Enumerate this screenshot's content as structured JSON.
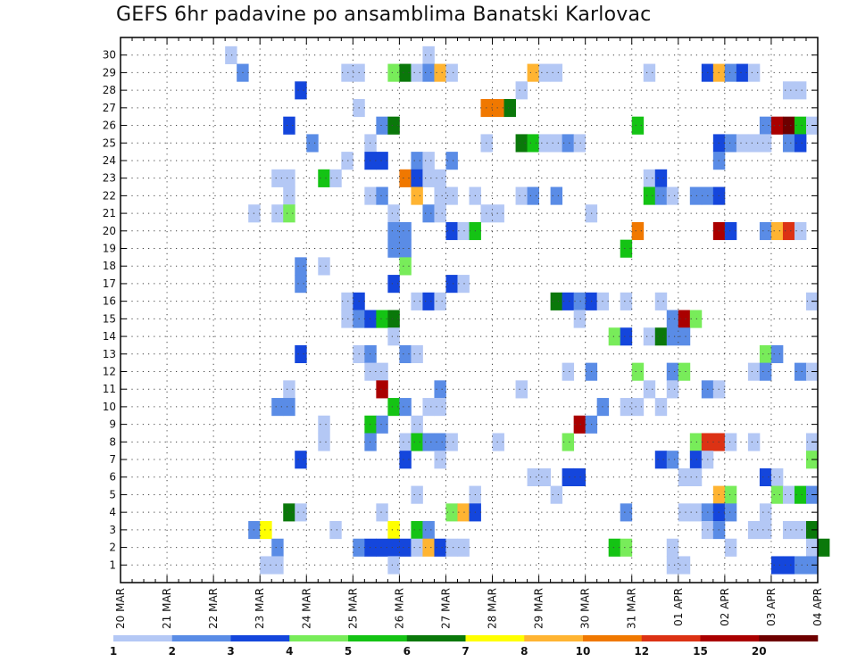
{
  "chart_data": {
    "type": "heatmap",
    "title": "GEFS 6hr padavine po ansamblima Banatski Karlovac",
    "y_ticks": [
      "1",
      "2",
      "3",
      "4",
      "5",
      "6",
      "7",
      "8",
      "9",
      "10",
      "11",
      "12",
      "13",
      "14",
      "15",
      "16",
      "17",
      "18",
      "19",
      "20",
      "21",
      "22",
      "23",
      "24",
      "25",
      "26",
      "27",
      "28",
      "29",
      "30"
    ],
    "x_ticks": [
      "20 MAR",
      "21 MAR",
      "22 MAR",
      "23 MAR",
      "24 MAR",
      "25 MAR",
      "26 MAR",
      "27 MAR",
      "28 MAR",
      "29 MAR",
      "30 MAR",
      "31 MAR",
      "01 APR",
      "02 APR",
      "03 APR",
      "04 APR"
    ],
    "grid": true,
    "colorbar": {
      "labels": [
        "1",
        "2",
        "3",
        "4",
        "5",
        "6",
        "7",
        "8",
        "10",
        "12",
        "15",
        "20"
      ],
      "colors": [
        "#b4c8f5",
        "#5a8ce6",
        "#1446dc",
        "#78ec5a",
        "#14c314",
        "#0a780a",
        "#ffff00",
        "#ffb432",
        "#f07800",
        "#dc3214",
        "#aa0000",
        "#6e0000"
      ]
    },
    "x_steps_per_day": 4,
    "cells": [
      {
        "x": 9,
        "y": 30,
        "c": 0
      },
      {
        "x": 26,
        "y": 30,
        "c": 0
      },
      {
        "x": 10,
        "y": 29,
        "c": 1
      },
      {
        "x": 19,
        "y": 29,
        "c": 0
      },
      {
        "x": 20,
        "y": 29,
        "c": 0
      },
      {
        "x": 23,
        "y": 29,
        "c": 3
      },
      {
        "x": 24,
        "y": 29,
        "c": 5
      },
      {
        "x": 25,
        "y": 29,
        "c": 0
      },
      {
        "x": 26,
        "y": 29,
        "c": 1
      },
      {
        "x": 27,
        "y": 29,
        "c": 7
      },
      {
        "x": 28,
        "y": 29,
        "c": 0
      },
      {
        "x": 35,
        "y": 29,
        "c": 7
      },
      {
        "x": 36,
        "y": 29,
        "c": 0
      },
      {
        "x": 37,
        "y": 29,
        "c": 0
      },
      {
        "x": 45,
        "y": 29,
        "c": 0
      },
      {
        "x": 50,
        "y": 29,
        "c": 2
      },
      {
        "x": 51,
        "y": 29,
        "c": 7
      },
      {
        "x": 52,
        "y": 29,
        "c": 1
      },
      {
        "x": 53,
        "y": 29,
        "c": 2
      },
      {
        "x": 54,
        "y": 29,
        "c": 0
      },
      {
        "x": 15,
        "y": 28,
        "c": 2
      },
      {
        "x": 34,
        "y": 28,
        "c": 0
      },
      {
        "x": 57,
        "y": 28,
        "c": 0
      },
      {
        "x": 58,
        "y": 28,
        "c": 0
      },
      {
        "x": 20,
        "y": 27,
        "c": 0
      },
      {
        "x": 31,
        "y": 27,
        "c": 8
      },
      {
        "x": 32,
        "y": 27,
        "c": 8
      },
      {
        "x": 33,
        "y": 27,
        "c": 5
      },
      {
        "x": 14,
        "y": 26,
        "c": 2
      },
      {
        "x": 22,
        "y": 26,
        "c": 1
      },
      {
        "x": 23,
        "y": 26,
        "c": 5
      },
      {
        "x": 44,
        "y": 26,
        "c": 4
      },
      {
        "x": 55,
        "y": 26,
        "c": 1
      },
      {
        "x": 56,
        "y": 26,
        "c": 10
      },
      {
        "x": 57,
        "y": 26,
        "c": 11
      },
      {
        "x": 58,
        "y": 26,
        "c": 4
      },
      {
        "x": 59,
        "y": 26,
        "c": 0
      },
      {
        "x": 16,
        "y": 25,
        "c": 1
      },
      {
        "x": 21,
        "y": 25,
        "c": 0
      },
      {
        "x": 31,
        "y": 25,
        "c": 0
      },
      {
        "x": 34,
        "y": 25,
        "c": 5
      },
      {
        "x": 35,
        "y": 25,
        "c": 4
      },
      {
        "x": 36,
        "y": 25,
        "c": 0
      },
      {
        "x": 37,
        "y": 25,
        "c": 0
      },
      {
        "x": 38,
        "y": 25,
        "c": 1
      },
      {
        "x": 39,
        "y": 25,
        "c": 0
      },
      {
        "x": 51,
        "y": 25,
        "c": 2
      },
      {
        "x": 52,
        "y": 25,
        "c": 1
      },
      {
        "x": 53,
        "y": 25,
        "c": 0
      },
      {
        "x": 54,
        "y": 25,
        "c": 0
      },
      {
        "x": 55,
        "y": 25,
        "c": 0
      },
      {
        "x": 57,
        "y": 25,
        "c": 1
      },
      {
        "x": 58,
        "y": 25,
        "c": 2
      },
      {
        "x": 19,
        "y": 24,
        "c": 0
      },
      {
        "x": 21,
        "y": 24,
        "c": 2
      },
      {
        "x": 22,
        "y": 24,
        "c": 2
      },
      {
        "x": 25,
        "y": 24,
        "c": 1
      },
      {
        "x": 26,
        "y": 24,
        "c": 0
      },
      {
        "x": 28,
        "y": 24,
        "c": 1
      },
      {
        "x": 51,
        "y": 24,
        "c": 1
      },
      {
        "x": 13,
        "y": 23,
        "c": 0
      },
      {
        "x": 14,
        "y": 23,
        "c": 0
      },
      {
        "x": 17,
        "y": 23,
        "c": 4
      },
      {
        "x": 18,
        "y": 23,
        "c": 0
      },
      {
        "x": 24,
        "y": 23,
        "c": 8
      },
      {
        "x": 25,
        "y": 23,
        "c": 2
      },
      {
        "x": 26,
        "y": 23,
        "c": 0
      },
      {
        "x": 27,
        "y": 23,
        "c": 0
      },
      {
        "x": 45,
        "y": 23,
        "c": 0
      },
      {
        "x": 46,
        "y": 23,
        "c": 2
      },
      {
        "x": 14,
        "y": 22,
        "c": 0
      },
      {
        "x": 21,
        "y": 22,
        "c": 0
      },
      {
        "x": 22,
        "y": 22,
        "c": 1
      },
      {
        "x": 25,
        "y": 22,
        "c": 7
      },
      {
        "x": 27,
        "y": 22,
        "c": 0
      },
      {
        "x": 28,
        "y": 22,
        "c": 0
      },
      {
        "x": 30,
        "y": 22,
        "c": 0
      },
      {
        "x": 34,
        "y": 22,
        "c": 0
      },
      {
        "x": 35,
        "y": 22,
        "c": 1
      },
      {
        "x": 37,
        "y": 22,
        "c": 1
      },
      {
        "x": 45,
        "y": 22,
        "c": 4
      },
      {
        "x": 46,
        "y": 22,
        "c": 1
      },
      {
        "x": 47,
        "y": 22,
        "c": 0
      },
      {
        "x": 49,
        "y": 22,
        "c": 1
      },
      {
        "x": 50,
        "y": 22,
        "c": 1
      },
      {
        "x": 51,
        "y": 22,
        "c": 2
      },
      {
        "x": 11,
        "y": 21,
        "c": 0
      },
      {
        "x": 13,
        "y": 21,
        "c": 0
      },
      {
        "x": 14,
        "y": 21,
        "c": 3
      },
      {
        "x": 23,
        "y": 21,
        "c": 0
      },
      {
        "x": 26,
        "y": 21,
        "c": 1
      },
      {
        "x": 27,
        "y": 21,
        "c": 0
      },
      {
        "x": 31,
        "y": 21,
        "c": 0
      },
      {
        "x": 32,
        "y": 21,
        "c": 0
      },
      {
        "x": 40,
        "y": 21,
        "c": 0
      },
      {
        "x": 23,
        "y": 20,
        "c": 1
      },
      {
        "x": 24,
        "y": 20,
        "c": 1
      },
      {
        "x": 28,
        "y": 20,
        "c": 2
      },
      {
        "x": 29,
        "y": 20,
        "c": 0
      },
      {
        "x": 30,
        "y": 20,
        "c": 4
      },
      {
        "x": 44,
        "y": 20,
        "c": 8
      },
      {
        "x": 51,
        "y": 20,
        "c": 10
      },
      {
        "x": 52,
        "y": 20,
        "c": 2
      },
      {
        "x": 55,
        "y": 20,
        "c": 1
      },
      {
        "x": 56,
        "y": 20,
        "c": 7
      },
      {
        "x": 57,
        "y": 20,
        "c": 9
      },
      {
        "x": 58,
        "y": 20,
        "c": 0
      },
      {
        "x": 23,
        "y": 19,
        "c": 1
      },
      {
        "x": 24,
        "y": 19,
        "c": 1
      },
      {
        "x": 43,
        "y": 19,
        "c": 4
      },
      {
        "x": 17,
        "y": 18,
        "c": 0
      },
      {
        "x": 24,
        "y": 18,
        "c": 3
      },
      {
        "x": 15,
        "y": 18,
        "c": 1
      },
      {
        "x": 15,
        "y": 17,
        "c": 1
      },
      {
        "x": 23,
        "y": 17,
        "c": 2
      },
      {
        "x": 28,
        "y": 17,
        "c": 2
      },
      {
        "x": 29,
        "y": 17,
        "c": 0
      },
      {
        "x": 19,
        "y": 16,
        "c": 0
      },
      {
        "x": 20,
        "y": 16,
        "c": 2
      },
      {
        "x": 25,
        "y": 16,
        "c": 0
      },
      {
        "x": 26,
        "y": 16,
        "c": 2
      },
      {
        "x": 27,
        "y": 16,
        "c": 0
      },
      {
        "x": 37,
        "y": 16,
        "c": 5
      },
      {
        "x": 38,
        "y": 16,
        "c": 2
      },
      {
        "x": 39,
        "y": 16,
        "c": 1
      },
      {
        "x": 40,
        "y": 16,
        "c": 2
      },
      {
        "x": 41,
        "y": 16,
        "c": 0
      },
      {
        "x": 43,
        "y": 16,
        "c": 0
      },
      {
        "x": 46,
        "y": 16,
        "c": 0
      },
      {
        "x": 59,
        "y": 16,
        "c": 0
      },
      {
        "x": 19,
        "y": 15,
        "c": 0
      },
      {
        "x": 20,
        "y": 15,
        "c": 1
      },
      {
        "x": 21,
        "y": 15,
        "c": 2
      },
      {
        "x": 22,
        "y": 15,
        "c": 4
      },
      {
        "x": 23,
        "y": 15,
        "c": 5
      },
      {
        "x": 39,
        "y": 15,
        "c": 0
      },
      {
        "x": 47,
        "y": 15,
        "c": 1
      },
      {
        "x": 48,
        "y": 15,
        "c": 10
      },
      {
        "x": 49,
        "y": 15,
        "c": 3
      },
      {
        "x": 23,
        "y": 14,
        "c": 0
      },
      {
        "x": 42,
        "y": 14,
        "c": 3
      },
      {
        "x": 43,
        "y": 14,
        "c": 2
      },
      {
        "x": 45,
        "y": 14,
        "c": 0
      },
      {
        "x": 46,
        "y": 14,
        "c": 5
      },
      {
        "x": 47,
        "y": 14,
        "c": 1
      },
      {
        "x": 48,
        "y": 14,
        "c": 1
      },
      {
        "x": 15,
        "y": 13,
        "c": 2
      },
      {
        "x": 20,
        "y": 13,
        "c": 0
      },
      {
        "x": 21,
        "y": 13,
        "c": 1
      },
      {
        "x": 24,
        "y": 13,
        "c": 1
      },
      {
        "x": 25,
        "y": 13,
        "c": 0
      },
      {
        "x": 55,
        "y": 13,
        "c": 3
      },
      {
        "x": 56,
        "y": 13,
        "c": 1
      },
      {
        "x": 21,
        "y": 12,
        "c": 0
      },
      {
        "x": 22,
        "y": 12,
        "c": 0
      },
      {
        "x": 38,
        "y": 12,
        "c": 0
      },
      {
        "x": 40,
        "y": 12,
        "c": 1
      },
      {
        "x": 44,
        "y": 12,
        "c": 3
      },
      {
        "x": 47,
        "y": 12,
        "c": 1
      },
      {
        "x": 48,
        "y": 12,
        "c": 3
      },
      {
        "x": 54,
        "y": 12,
        "c": 0
      },
      {
        "x": 55,
        "y": 12,
        "c": 1
      },
      {
        "x": 58,
        "y": 12,
        "c": 1
      },
      {
        "x": 59,
        "y": 12,
        "c": 0
      },
      {
        "x": 14,
        "y": 11,
        "c": 0
      },
      {
        "x": 22,
        "y": 11,
        "c": 10
      },
      {
        "x": 27,
        "y": 11,
        "c": 1
      },
      {
        "x": 34,
        "y": 11,
        "c": 0
      },
      {
        "x": 45,
        "y": 11,
        "c": 0
      },
      {
        "x": 47,
        "y": 11,
        "c": 0
      },
      {
        "x": 50,
        "y": 11,
        "c": 1
      },
      {
        "x": 51,
        "y": 11,
        "c": 0
      },
      {
        "x": 13,
        "y": 10,
        "c": 1
      },
      {
        "x": 14,
        "y": 10,
        "c": 1
      },
      {
        "x": 23,
        "y": 10,
        "c": 4
      },
      {
        "x": 24,
        "y": 10,
        "c": 1
      },
      {
        "x": 26,
        "y": 10,
        "c": 0
      },
      {
        "x": 27,
        "y": 10,
        "c": 0
      },
      {
        "x": 41,
        "y": 10,
        "c": 1
      },
      {
        "x": 43,
        "y": 10,
        "c": 0
      },
      {
        "x": 44,
        "y": 10,
        "c": 0
      },
      {
        "x": 46,
        "y": 10,
        "c": 0
      },
      {
        "x": 17,
        "y": 9,
        "c": 0
      },
      {
        "x": 21,
        "y": 9,
        "c": 4
      },
      {
        "x": 22,
        "y": 9,
        "c": 1
      },
      {
        "x": 25,
        "y": 9,
        "c": 0
      },
      {
        "x": 39,
        "y": 9,
        "c": 10
      },
      {
        "x": 40,
        "y": 9,
        "c": 1
      },
      {
        "x": 17,
        "y": 8,
        "c": 0
      },
      {
        "x": 21,
        "y": 8,
        "c": 1
      },
      {
        "x": 24,
        "y": 8,
        "c": 0
      },
      {
        "x": 25,
        "y": 8,
        "c": 4
      },
      {
        "x": 26,
        "y": 8,
        "c": 1
      },
      {
        "x": 27,
        "y": 8,
        "c": 1
      },
      {
        "x": 28,
        "y": 8,
        "c": 0
      },
      {
        "x": 32,
        "y": 8,
        "c": 0
      },
      {
        "x": 38,
        "y": 8,
        "c": 3
      },
      {
        "x": 49,
        "y": 8,
        "c": 3
      },
      {
        "x": 50,
        "y": 8,
        "c": 9
      },
      {
        "x": 51,
        "y": 8,
        "c": 9
      },
      {
        "x": 52,
        "y": 8,
        "c": 0
      },
      {
        "x": 54,
        "y": 8,
        "c": 0
      },
      {
        "x": 59,
        "y": 8,
        "c": 0
      },
      {
        "x": 15,
        "y": 7,
        "c": 2
      },
      {
        "x": 24,
        "y": 7,
        "c": 2
      },
      {
        "x": 27,
        "y": 7,
        "c": 0
      },
      {
        "x": 46,
        "y": 7,
        "c": 2
      },
      {
        "x": 47,
        "y": 7,
        "c": 1
      },
      {
        "x": 49,
        "y": 7,
        "c": 2
      },
      {
        "x": 50,
        "y": 7,
        "c": 0
      },
      {
        "x": 59,
        "y": 7,
        "c": 3
      },
      {
        "x": 35,
        "y": 6,
        "c": 0
      },
      {
        "x": 36,
        "y": 6,
        "c": 0
      },
      {
        "x": 38,
        "y": 6,
        "c": 2
      },
      {
        "x": 39,
        "y": 6,
        "c": 2
      },
      {
        "x": 48,
        "y": 6,
        "c": 0
      },
      {
        "x": 49,
        "y": 6,
        "c": 0
      },
      {
        "x": 55,
        "y": 6,
        "c": 2
      },
      {
        "x": 56,
        "y": 6,
        "c": 0
      },
      {
        "x": 25,
        "y": 5,
        "c": 0
      },
      {
        "x": 30,
        "y": 5,
        "c": 0
      },
      {
        "x": 37,
        "y": 5,
        "c": 0
      },
      {
        "x": 51,
        "y": 5,
        "c": 7
      },
      {
        "x": 52,
        "y": 5,
        "c": 3
      },
      {
        "x": 56,
        "y": 5,
        "c": 3
      },
      {
        "x": 57,
        "y": 5,
        "c": 0
      },
      {
        "x": 58,
        "y": 5,
        "c": 4
      },
      {
        "x": 59,
        "y": 5,
        "c": 1
      },
      {
        "x": 14,
        "y": 4,
        "c": 5
      },
      {
        "x": 15,
        "y": 4,
        "c": 0
      },
      {
        "x": 22,
        "y": 4,
        "c": 0
      },
      {
        "x": 28,
        "y": 4,
        "c": 3
      },
      {
        "x": 29,
        "y": 4,
        "c": 7
      },
      {
        "x": 30,
        "y": 4,
        "c": 2
      },
      {
        "x": 43,
        "y": 4,
        "c": 1
      },
      {
        "x": 48,
        "y": 4,
        "c": 0
      },
      {
        "x": 49,
        "y": 4,
        "c": 0
      },
      {
        "x": 50,
        "y": 4,
        "c": 1
      },
      {
        "x": 51,
        "y": 4,
        "c": 2
      },
      {
        "x": 52,
        "y": 4,
        "c": 1
      },
      {
        "x": 55,
        "y": 4,
        "c": 0
      },
      {
        "x": 11,
        "y": 3,
        "c": 1
      },
      {
        "x": 12,
        "y": 3,
        "c": 6
      },
      {
        "x": 18,
        "y": 3,
        "c": 0
      },
      {
        "x": 23,
        "y": 3,
        "c": 6
      },
      {
        "x": 25,
        "y": 3,
        "c": 4
      },
      {
        "x": 26,
        "y": 3,
        "c": 1
      },
      {
        "x": 50,
        "y": 3,
        "c": 0
      },
      {
        "x": 51,
        "y": 3,
        "c": 1
      },
      {
        "x": 54,
        "y": 3,
        "c": 0
      },
      {
        "x": 55,
        "y": 3,
        "c": 0
      },
      {
        "x": 57,
        "y": 3,
        "c": 0
      },
      {
        "x": 58,
        "y": 3,
        "c": 0
      },
      {
        "x": 59,
        "y": 3,
        "c": 5
      },
      {
        "x": 13,
        "y": 2,
        "c": 1
      },
      {
        "x": 20,
        "y": 2,
        "c": 1
      },
      {
        "x": 21,
        "y": 2,
        "c": 2
      },
      {
        "x": 22,
        "y": 2,
        "c": 2
      },
      {
        "x": 23,
        "y": 2,
        "c": 2
      },
      {
        "x": 24,
        "y": 2,
        "c": 2
      },
      {
        "x": 25,
        "y": 2,
        "c": 0
      },
      {
        "x": 26,
        "y": 2,
        "c": 7
      },
      {
        "x": 27,
        "y": 2,
        "c": 2
      },
      {
        "x": 28,
        "y": 2,
        "c": 0
      },
      {
        "x": 29,
        "y": 2,
        "c": 0
      },
      {
        "x": 42,
        "y": 2,
        "c": 4
      },
      {
        "x": 43,
        "y": 2,
        "c": 3
      },
      {
        "x": 47,
        "y": 2,
        "c": 0
      },
      {
        "x": 52,
        "y": 2,
        "c": 0
      },
      {
        "x": 59,
        "y": 2,
        "c": 0
      },
      {
        "x": 60,
        "y": 2,
        "c": 5
      },
      {
        "x": 12,
        "y": 1,
        "c": 0
      },
      {
        "x": 13,
        "y": 1,
        "c": 0
      },
      {
        "x": 23,
        "y": 1,
        "c": 0
      },
      {
        "x": 47,
        "y": 1,
        "c": 0
      },
      {
        "x": 48,
        "y": 1,
        "c": 0
      },
      {
        "x": 56,
        "y": 1,
        "c": 2
      },
      {
        "x": 57,
        "y": 1,
        "c": 2
      },
      {
        "x": 58,
        "y": 1,
        "c": 1
      },
      {
        "x": 59,
        "y": 1,
        "c": 1
      }
    ]
  }
}
